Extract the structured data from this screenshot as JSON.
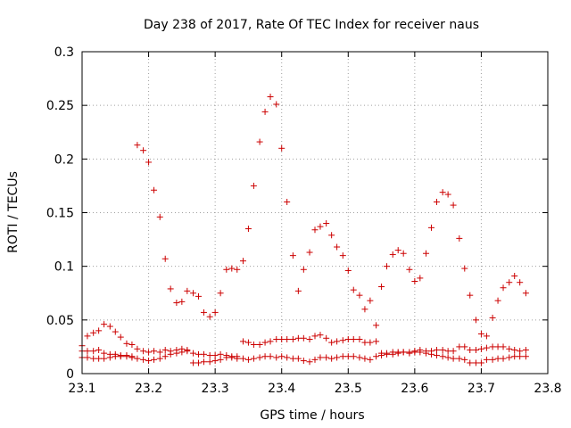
{
  "chart_data": {
    "type": "scatter",
    "title": "Day 238 of 2017, Rate Of TEC Index for receiver naus",
    "xlabel": "GPS time / hours",
    "ylabel": "ROTI / TECUs",
    "xlim": [
      23.1,
      23.8
    ],
    "ylim": [
      0,
      0.3
    ],
    "xticks": [
      "23.1",
      "23.2",
      "23.3",
      "23.4",
      "23.5",
      "23.6",
      "23.7",
      "23.8"
    ],
    "yticks": [
      "0",
      "0.05",
      "0.1",
      "0.15",
      "0.2",
      "0.25",
      "0.3"
    ],
    "grid": true,
    "marker": "+",
    "color": "#cc0000",
    "series": [
      {
        "x": [
          23.1,
          23.108,
          23.117,
          23.125,
          23.133,
          23.142,
          23.15,
          23.158,
          23.167,
          23.175,
          23.183,
          23.192,
          23.2,
          23.208,
          23.217,
          23.225,
          23.233,
          23.242,
          23.25,
          23.258,
          23.267,
          23.275,
          23.283,
          23.292,
          23.3,
          23.308,
          23.317,
          23.325,
          23.333,
          23.342,
          23.35,
          23.358,
          23.367,
          23.375,
          23.383,
          23.392,
          23.4,
          23.408,
          23.417,
          23.425,
          23.433,
          23.442,
          23.45,
          23.458,
          23.467,
          23.475,
          23.483,
          23.492,
          23.5,
          23.508,
          23.517,
          23.525,
          23.533,
          23.542,
          23.55,
          23.558,
          23.567,
          23.575,
          23.583,
          23.592,
          23.6,
          23.608,
          23.617,
          23.625,
          23.633,
          23.642,
          23.65,
          23.658,
          23.667,
          23.675,
          23.683,
          23.692,
          23.7,
          23.708,
          23.717,
          23.725,
          23.733,
          23.742,
          23.75,
          23.758,
          23.767
        ],
        "y": [
          0.026,
          0.035,
          0.038,
          0.04,
          0.046,
          0.044,
          0.039,
          0.034,
          0.028,
          0.027,
          0.213,
          0.208,
          0.197,
          0.171,
          0.146,
          0.107,
          0.079,
          0.066,
          0.067,
          0.077,
          0.075,
          0.072,
          0.057,
          0.053,
          0.057,
          0.075,
          0.097,
          0.098,
          0.097,
          0.105,
          0.135,
          0.175,
          0.216,
          0.244,
          0.258,
          0.251,
          0.21,
          0.16,
          0.11,
          0.077,
          0.097,
          0.113,
          0.134,
          0.137,
          0.14,
          0.129,
          0.118,
          0.11,
          0.096,
          0.078,
          0.073,
          0.06,
          0.068,
          0.045,
          0.081,
          0.1,
          0.111,
          0.115,
          0.112,
          0.097,
          0.086,
          0.089,
          0.112,
          0.136,
          0.16,
          0.169,
          0.167,
          0.157,
          0.126,
          0.098,
          0.073,
          0.05,
          0.037,
          0.035,
          0.052,
          0.068,
          0.08,
          0.085,
          0.091,
          0.085,
          0.075
        ]
      },
      {
        "x": [
          23.1,
          23.108,
          23.117,
          23.125,
          23.133,
          23.142,
          23.15,
          23.158,
          23.167,
          23.175,
          23.183,
          23.192,
          23.2,
          23.208,
          23.217,
          23.225,
          23.233,
          23.242,
          23.25,
          23.258,
          23.267,
          23.275,
          23.283,
          23.292,
          23.3,
          23.308,
          23.317,
          23.325,
          23.333,
          23.342,
          23.35,
          23.358,
          23.367,
          23.375,
          23.383,
          23.392,
          23.4,
          23.408,
          23.417,
          23.425,
          23.433,
          23.442,
          23.45,
          23.458,
          23.467,
          23.475,
          23.483,
          23.492,
          23.5,
          23.508,
          23.517,
          23.525,
          23.533,
          23.542,
          23.55,
          23.558,
          23.567,
          23.575,
          23.583,
          23.592,
          23.6,
          23.608,
          23.617,
          23.625,
          23.633,
          23.642,
          23.65,
          23.658,
          23.667,
          23.675,
          23.683,
          23.692,
          23.7,
          23.708,
          23.717,
          23.725,
          23.733,
          23.742,
          23.75,
          23.758,
          23.767
        ],
        "y": [
          0.021,
          0.021,
          0.021,
          0.022,
          0.019,
          0.018,
          0.018,
          0.017,
          0.017,
          0.016,
          0.023,
          0.021,
          0.02,
          0.021,
          0.02,
          0.022,
          0.021,
          0.022,
          0.023,
          0.022,
          0.019,
          0.018,
          0.018,
          0.017,
          0.017,
          0.018,
          0.017,
          0.016,
          0.016,
          0.03,
          0.029,
          0.027,
          0.027,
          0.029,
          0.03,
          0.032,
          0.032,
          0.032,
          0.032,
          0.033,
          0.033,
          0.032,
          0.035,
          0.036,
          0.033,
          0.029,
          0.03,
          0.031,
          0.032,
          0.032,
          0.032,
          0.029,
          0.029,
          0.03,
          0.019,
          0.019,
          0.018,
          0.019,
          0.02,
          0.02,
          0.021,
          0.022,
          0.021,
          0.021,
          0.022,
          0.022,
          0.021,
          0.021,
          0.025,
          0.025,
          0.022,
          0.022,
          0.023,
          0.024,
          0.025,
          0.025,
          0.025,
          0.023,
          0.022,
          0.021,
          0.022
        ]
      },
      {
        "x": [
          23.1,
          23.108,
          23.117,
          23.125,
          23.133,
          23.142,
          23.15,
          23.158,
          23.167,
          23.175,
          23.183,
          23.192,
          23.2,
          23.208,
          23.217,
          23.225,
          23.233,
          23.242,
          23.25,
          23.258,
          23.267,
          23.275,
          23.283,
          23.292,
          23.3,
          23.308,
          23.317,
          23.325,
          23.333,
          23.342,
          23.35,
          23.358,
          23.367,
          23.375,
          23.383,
          23.392,
          23.4,
          23.408,
          23.417,
          23.425,
          23.433,
          23.442,
          23.45,
          23.458,
          23.467,
          23.475,
          23.483,
          23.492,
          23.5,
          23.508,
          23.517,
          23.525,
          23.533,
          23.542,
          23.55,
          23.558,
          23.567,
          23.575,
          23.583,
          23.592,
          23.6,
          23.608,
          23.617,
          23.625,
          23.633,
          23.642,
          23.65,
          23.658,
          23.667,
          23.675,
          23.683,
          23.692,
          23.7,
          23.708,
          23.717,
          23.725,
          23.733,
          23.742,
          23.75,
          23.758,
          23.767
        ],
        "y": [
          0.015,
          0.015,
          0.014,
          0.014,
          0.014,
          0.015,
          0.016,
          0.016,
          0.016,
          0.015,
          0.014,
          0.013,
          0.012,
          0.013,
          0.014,
          0.016,
          0.018,
          0.019,
          0.02,
          0.021,
          0.01,
          0.01,
          0.011,
          0.011,
          0.012,
          0.013,
          0.015,
          0.015,
          0.014,
          0.014,
          0.013,
          0.014,
          0.015,
          0.016,
          0.016,
          0.015,
          0.016,
          0.015,
          0.014,
          0.014,
          0.012,
          0.011,
          0.013,
          0.015,
          0.015,
          0.014,
          0.015,
          0.016,
          0.016,
          0.016,
          0.015,
          0.014,
          0.013,
          0.016,
          0.017,
          0.018,
          0.02,
          0.02,
          0.02,
          0.019,
          0.02,
          0.02,
          0.019,
          0.018,
          0.017,
          0.016,
          0.015,
          0.014,
          0.014,
          0.013,
          0.01,
          0.01,
          0.01,
          0.013,
          0.013,
          0.014,
          0.014,
          0.015,
          0.016,
          0.016,
          0.016
        ]
      }
    ]
  }
}
